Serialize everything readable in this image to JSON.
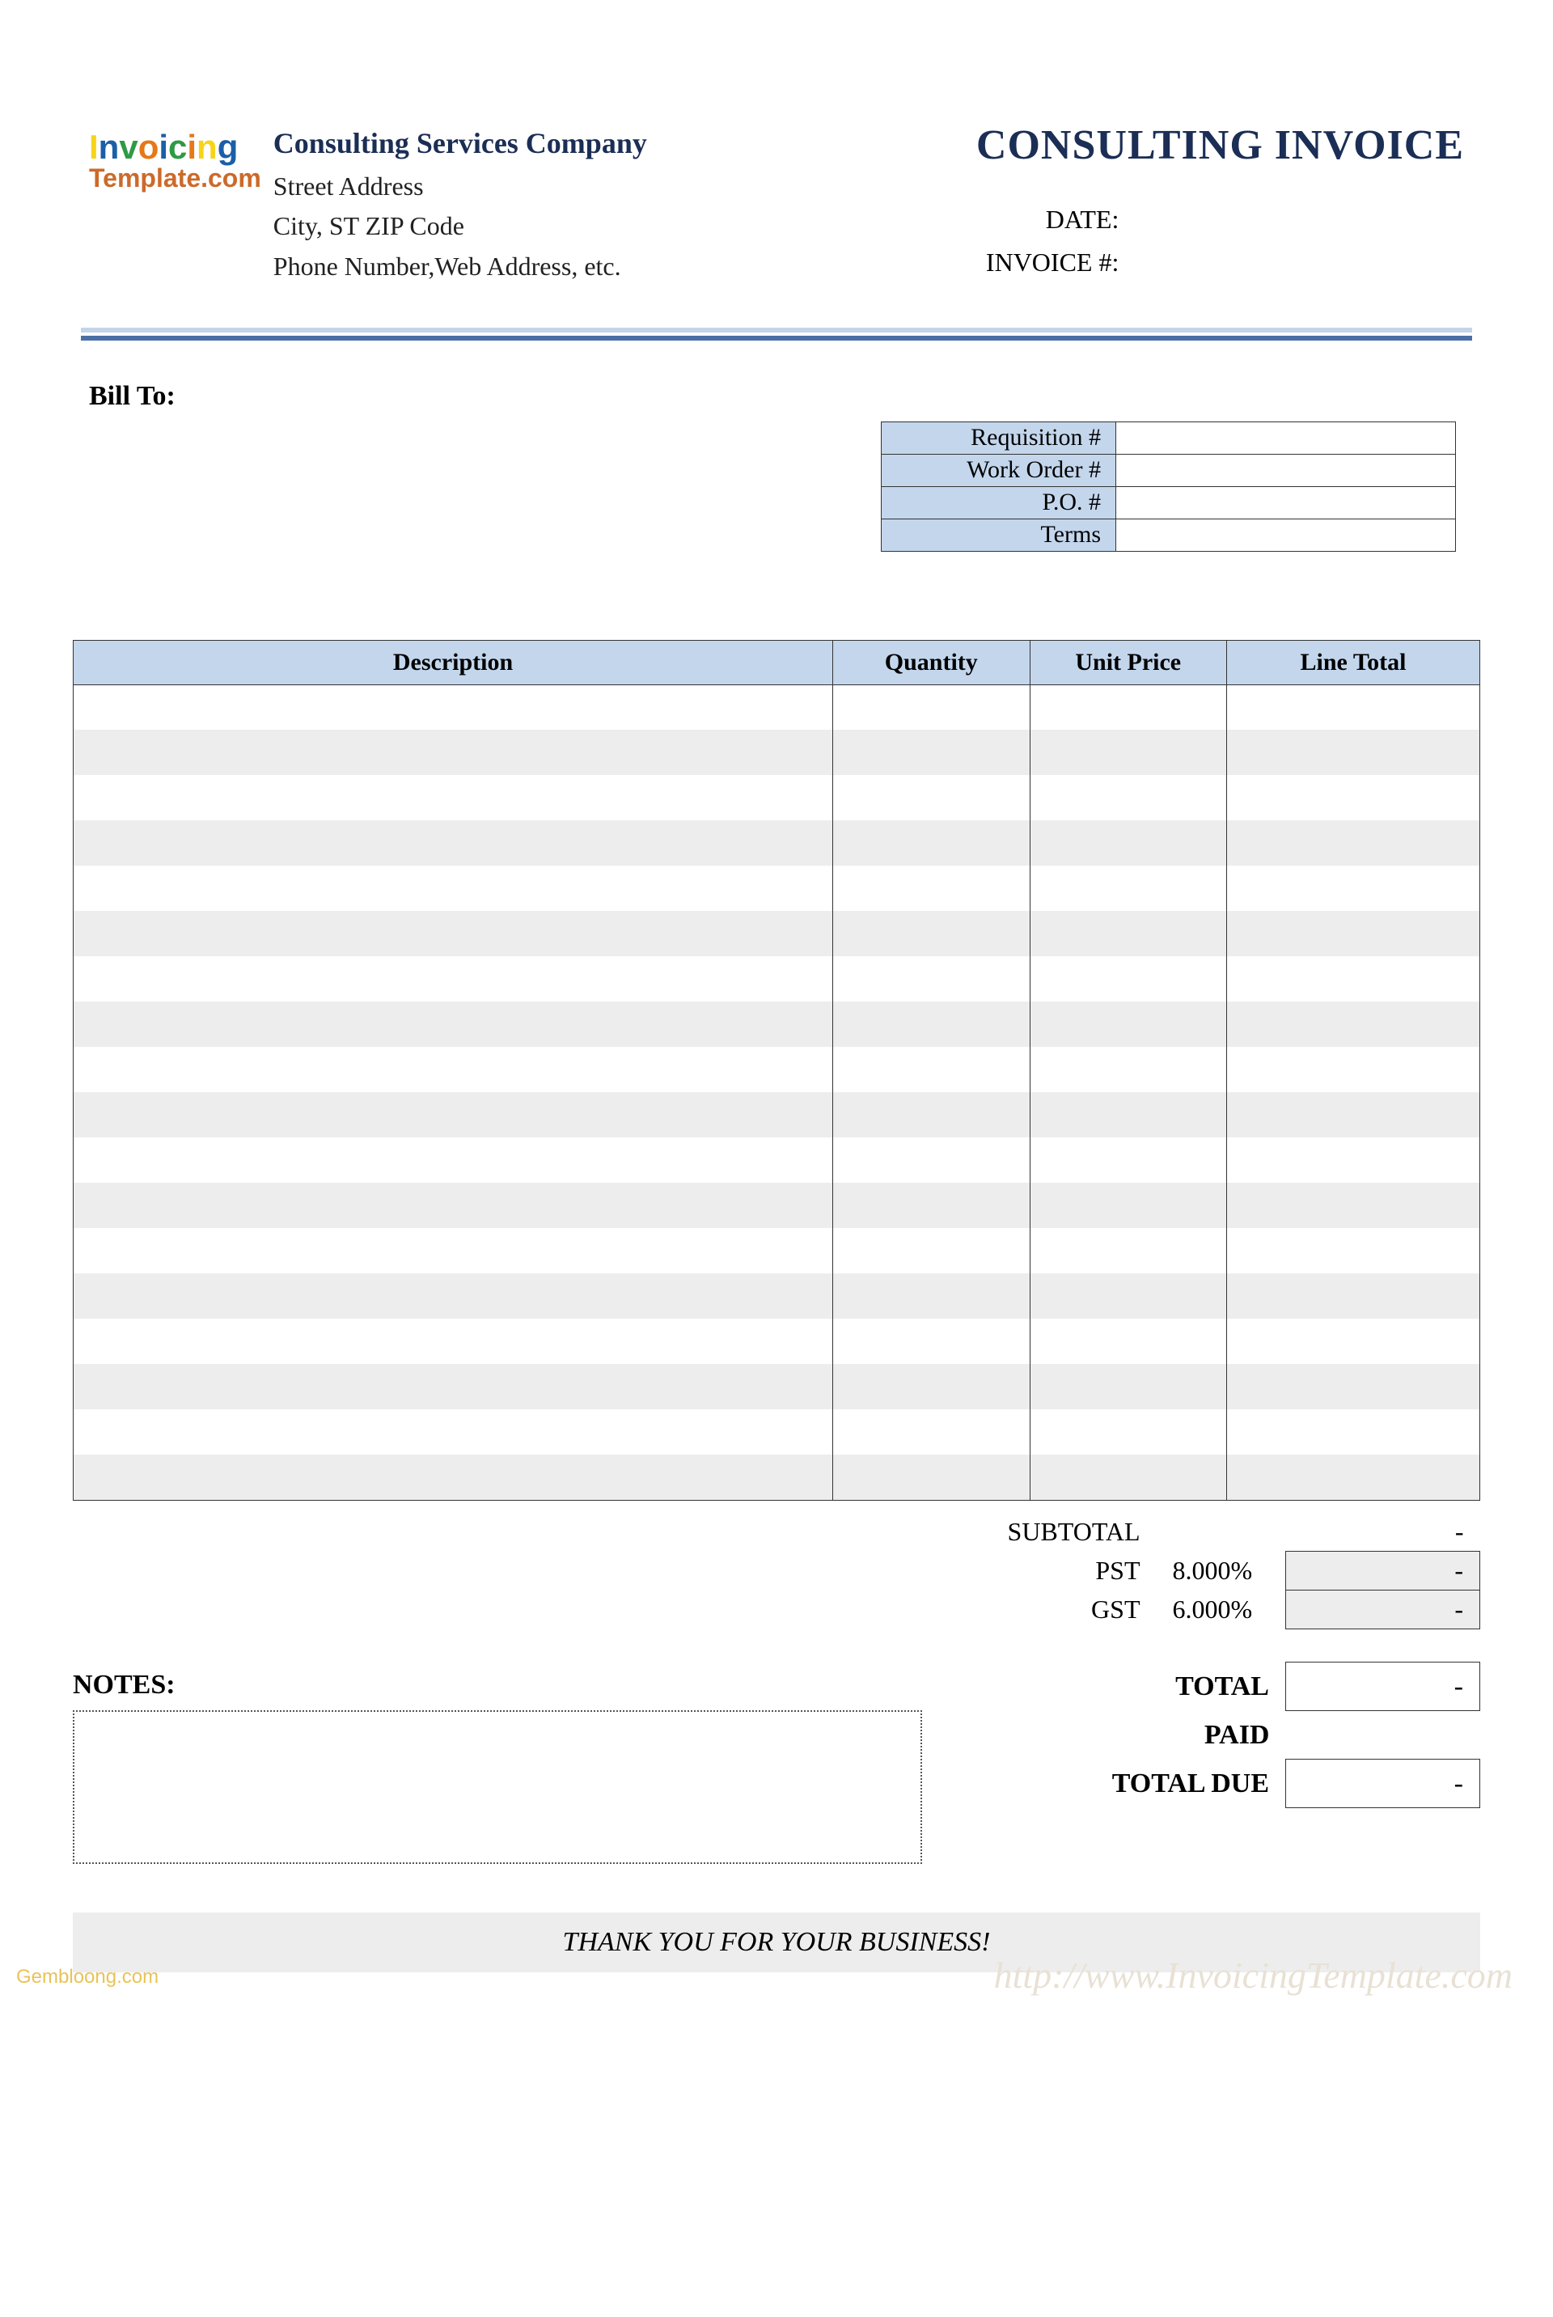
{
  "logo": {
    "top_letters": [
      "I",
      "n",
      "v",
      "o",
      "i",
      "c",
      "i",
      "n",
      "g"
    ],
    "bottom": "Template.com"
  },
  "company": {
    "name": "Consulting Services Company",
    "street": "Street Address",
    "city_line": "City, ST  ZIP Code",
    "contact": "Phone Number,Web Address, etc."
  },
  "doc": {
    "title": "CONSULTING INVOICE",
    "date_label": "DATE:",
    "invoice_no_label": "INVOICE #:",
    "date_value": "",
    "invoice_no_value": ""
  },
  "bill_to_label": "Bill To:",
  "ref": {
    "rows": [
      {
        "label": "Requisition #",
        "value": ""
      },
      {
        "label": "Work Order #",
        "value": ""
      },
      {
        "label": "P.O. #",
        "value": ""
      },
      {
        "label": "Terms",
        "value": ""
      }
    ]
  },
  "columns": {
    "description": "Description",
    "quantity": "Quantity",
    "unit_price": "Unit Price",
    "line_total": "Line Total"
  },
  "line_row_count": 18,
  "summary": {
    "subtotal_label": "SUBTOTAL",
    "subtotal_value": "-",
    "pst_label": "PST",
    "pst_pct": "8.000%",
    "pst_value": "-",
    "gst_label": "GST",
    "gst_pct": "6.000%",
    "gst_value": "-"
  },
  "notes_label": "NOTES:",
  "totals": {
    "total_label": "TOTAL",
    "total_value": "-",
    "paid_label": "PAID",
    "paid_value": "",
    "due_label": "TOTAL DUE",
    "due_value": "-"
  },
  "thank_you": "THANK YOU FOR YOUR BUSINESS!",
  "watermark_bl": "Gembloong.com",
  "watermark_br": "http://www.InvoicingTemplate.com",
  "colors": {
    "header_blue": "#c3d6ec",
    "stripe_grey": "#ededed",
    "brand_navy": "#1b2e55"
  }
}
